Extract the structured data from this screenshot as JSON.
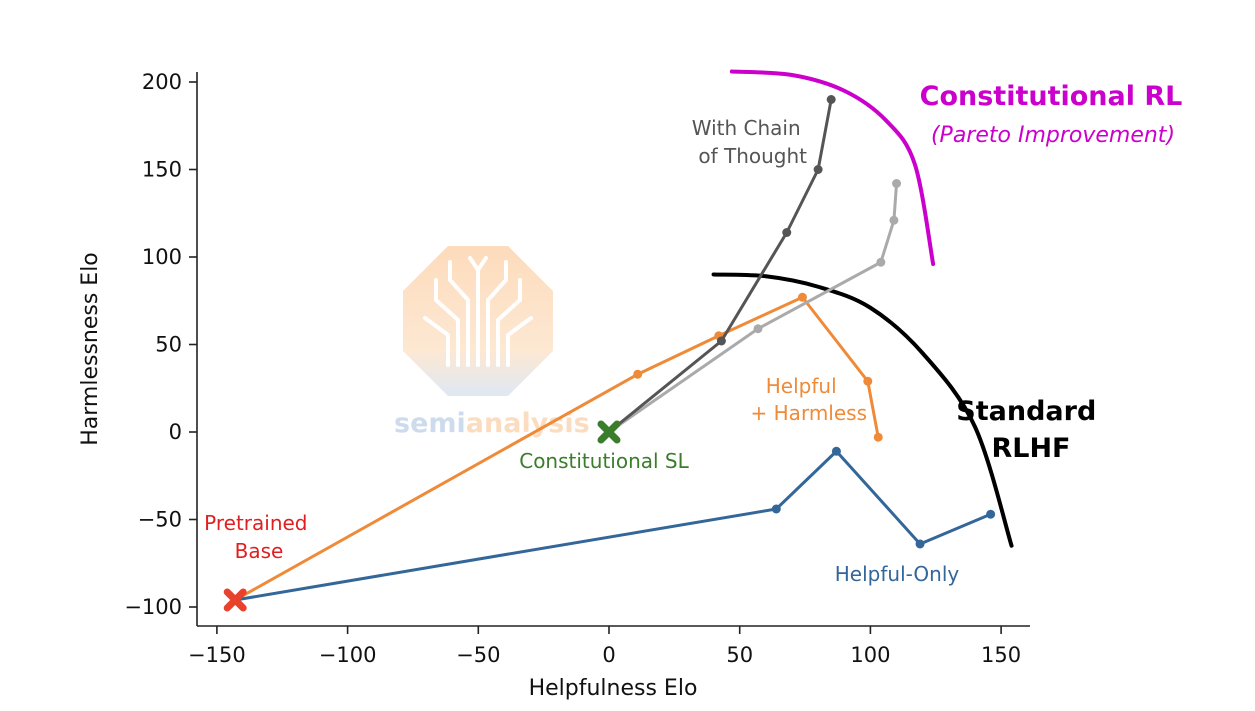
{
  "chart_data": {
    "type": "line",
    "xlabel": "Helpfulness Elo",
    "ylabel": "Harmlessness Elo",
    "xlim": [
      -155,
      160
    ],
    "ylim": [
      -110,
      205
    ],
    "x_ticks": [
      -150,
      -100,
      -50,
      0,
      50,
      100,
      150
    ],
    "y_ticks": [
      -100,
      -50,
      0,
      50,
      100,
      150,
      200
    ],
    "x_tick_labels": [
      "−150",
      "−100",
      "−50",
      "0",
      "50",
      "100",
      "150"
    ],
    "y_tick_labels": [
      "−100",
      "−50",
      "0",
      "50",
      "100",
      "150",
      "200"
    ],
    "grid": false,
    "series": [
      {
        "name": "Helpful-Only",
        "color": "#336699",
        "points": [
          [
            -143,
            -96
          ],
          [
            64,
            -44
          ],
          [
            87,
            -11
          ],
          [
            119,
            -64
          ],
          [
            146,
            -47
          ]
        ]
      },
      {
        "name": "Helpful + Harmless",
        "color": "#ee8a38",
        "points": [
          [
            -143,
            -96
          ],
          [
            11,
            33
          ],
          [
            42,
            55
          ],
          [
            74,
            77
          ],
          [
            99,
            29
          ],
          [
            103,
            -3
          ]
        ]
      },
      {
        "color": "#aaaaaa",
        "points": [
          [
            0,
            0
          ],
          [
            57,
            59
          ],
          [
            104,
            97
          ],
          [
            109,
            121
          ],
          [
            110,
            142
          ]
        ]
      },
      {
        "name": "With Chain of Thought",
        "color": "#555555",
        "points": [
          [
            0,
            0
          ],
          [
            43,
            52
          ],
          [
            68,
            114
          ],
          [
            80,
            150
          ],
          [
            85,
            190
          ]
        ]
      }
    ],
    "markers": [
      {
        "label": "Pretrained Base",
        "x": -143,
        "y": -96,
        "color": "#e8412c"
      },
      {
        "label": "Constitutional SL",
        "x": 0,
        "y": 0,
        "color": "#3a7d2a"
      }
    ],
    "annotations": {
      "pretrained": {
        "lines": [
          "Pretrained",
          "Base"
        ],
        "color": "#e02020"
      },
      "constitutional_sl": {
        "text": "Constitutional SL",
        "color": "#3a7d2a"
      },
      "helpful_harmless": {
        "lines": [
          "Helpful",
          "+ Harmless"
        ],
        "color": "#ee8a38"
      },
      "helpful_only": {
        "text": "Helpful-Only",
        "color": "#336699"
      },
      "chain_of_thought": {
        "lines": [
          "With Chain",
          "of Thought"
        ],
        "color": "#555555"
      },
      "standard_rlhf": {
        "lines": [
          "Standard",
          "RLHF"
        ],
        "color": "#000000"
      },
      "constitutional_rl": {
        "text": "Constitutional RL",
        "subtext": "(Pareto Improvement)",
        "color": "#cc00cc"
      }
    },
    "frontiers": [
      {
        "name": "standard-rlhf-frontier",
        "color": "#000000",
        "points": [
          [
            40,
            90
          ],
          [
            60,
            89
          ],
          [
            80,
            83
          ],
          [
            100,
            71
          ],
          [
            120,
            45
          ],
          [
            140,
            3
          ],
          [
            154,
            -65
          ]
        ]
      },
      {
        "name": "constitutional-rl-frontier",
        "color": "#cc00cc",
        "points": [
          [
            47,
            206
          ],
          [
            70,
            204
          ],
          [
            90,
            195
          ],
          [
            106,
            178
          ],
          [
            117,
            153
          ],
          [
            124,
            96
          ]
        ]
      }
    ]
  },
  "watermark": {
    "parts": [
      "semi",
      "analysis"
    ],
    "colors": [
      "#c9d8ec",
      "#fbd9b8"
    ]
  }
}
